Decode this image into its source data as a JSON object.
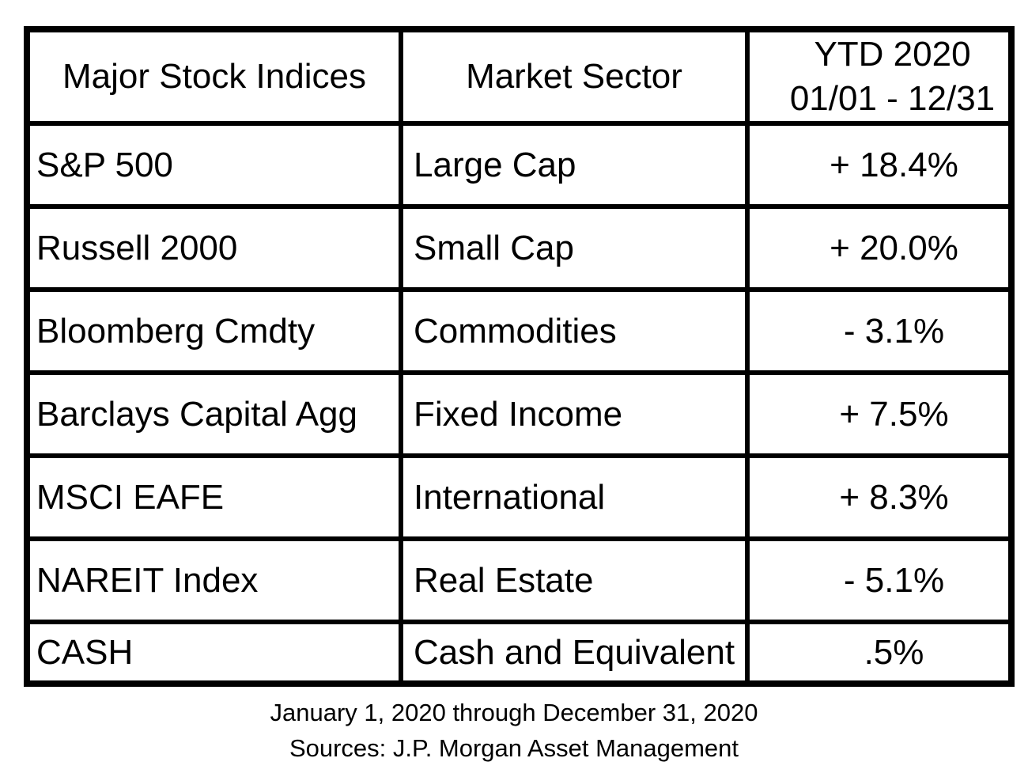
{
  "colors": {
    "background": "#ffffff",
    "border": "#000000",
    "text": "#000000"
  },
  "table": {
    "headers": {
      "col1": "Major Stock Indices",
      "col2": "Market Sector",
      "col3_line1": "YTD 2020",
      "col3_line2": "01/01 - 12/31"
    },
    "rows": [
      {
        "index": "S&P 500",
        "sector": "Large Cap",
        "ytd": "+ 18.4%"
      },
      {
        "index": "Russell 2000",
        "sector": "Small Cap",
        "ytd": "+ 20.0%"
      },
      {
        "index": "Bloomberg Cmdty",
        "sector": "Commodities",
        "ytd": "- 3.1%"
      },
      {
        "index": "Barclays Capital Agg",
        "sector": "Fixed Income",
        "ytd": "+ 7.5%"
      },
      {
        "index": "MSCI EAFE",
        "sector": "International",
        "ytd": "+ 8.3%"
      },
      {
        "index": "NAREIT Index",
        "sector": "Real Estate",
        "ytd": "- 5.1%"
      },
      {
        "index": "CASH",
        "sector": "Cash and Equivalent",
        "ytd": ".5%"
      }
    ]
  },
  "footer": {
    "line1": "January 1, 2020 through December 31, 2020",
    "line2": "Sources: J.P. Morgan Asset Management"
  },
  "chart_data": {
    "type": "table",
    "title": "Major Stock Indices YTD 2020 Returns (01/01 - 12/31)",
    "columns": [
      "Major Stock Indices",
      "Market Sector",
      "YTD 2020 01/01 - 12/31"
    ],
    "rows": [
      [
        "S&P 500",
        "Large Cap",
        "+ 18.4%"
      ],
      [
        "Russell 2000",
        "Small Cap",
        "+ 20.0%"
      ],
      [
        "Bloomberg Cmdty",
        "Commodities",
        "- 3.1%"
      ],
      [
        "Barclays Capital Agg",
        "Fixed Income",
        "+ 7.5%"
      ],
      [
        "MSCI EAFE",
        "International",
        "+ 8.3%"
      ],
      [
        "NAREIT Index",
        "Real Estate",
        "- 5.1%"
      ],
      [
        "CASH",
        "Cash and Equivalent",
        ".5%"
      ]
    ],
    "ytd_values_pct": [
      18.4,
      20.0,
      -3.1,
      7.5,
      8.3,
      -5.1,
      0.5
    ],
    "annotations": [
      "January 1, 2020 through December 31, 2020",
      "Sources: J.P. Morgan Asset Management"
    ]
  }
}
